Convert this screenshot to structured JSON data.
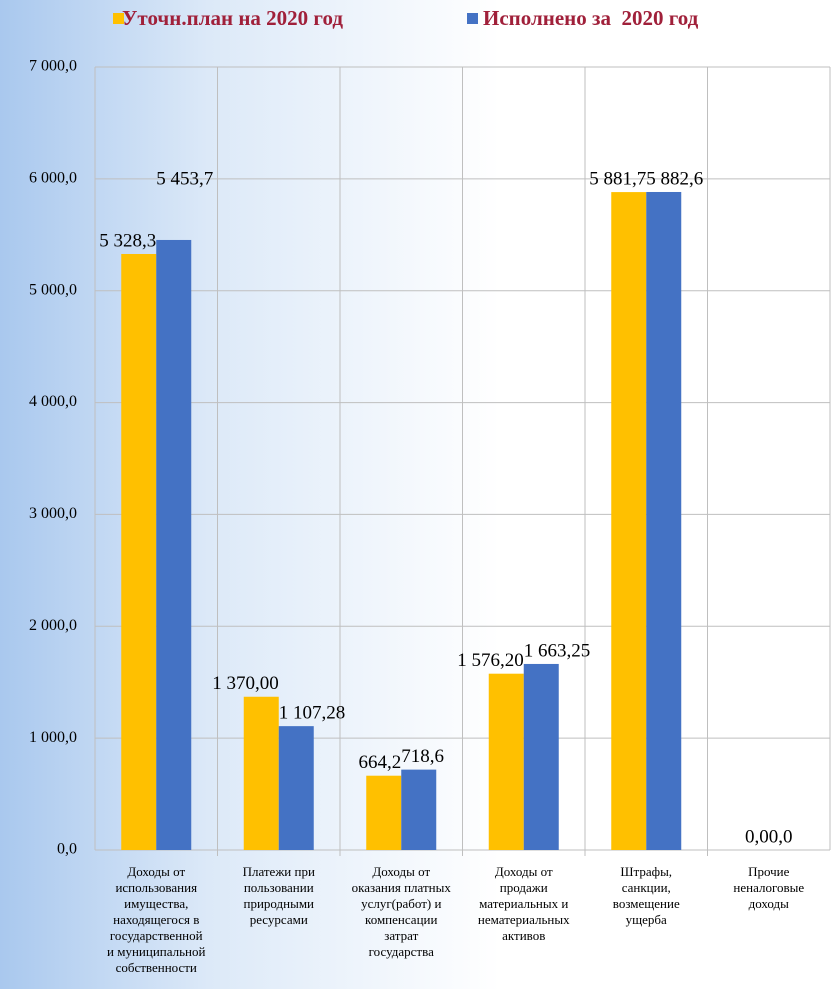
{
  "chart_data": {
    "type": "bar",
    "categories": [
      "Доходы от\nиспользования\nимущества,\nнаходящегося в\nгосударственной\nи муниципальной\nсобственности",
      "Платежи при\nпользовании\nприродными\nресурсами",
      "Доходы от\nоказания платных\nуслуг(работ) и\nкомпенсации\nзатрат\nгосударства",
      "Доходы от\nпродажи\nматериальных и\nнематериальных\nактивов",
      "Штрафы,\nсанкции,\nвозмещение\nущерба",
      "Прочие\nненалоговые\nдоходы"
    ],
    "series": [
      {
        "name": "Уточн.план на 2020 год",
        "color": "#ffc000",
        "values": [
          5328.3,
          1370.0,
          664.2,
          1576.2,
          5881.7,
          0.0
        ],
        "value_labels": [
          "5 328,3",
          "1 370,00",
          "664,2",
          "1 576,20",
          "5 881,7",
          "0,0"
        ]
      },
      {
        "name": "Исполнено за  2020 год",
        "color": "#4472c4",
        "values": [
          5453.7,
          1107.28,
          718.6,
          1663.25,
          5882.6,
          0.0
        ],
        "value_labels": [
          "5 453,7",
          "1 107,28",
          "718,6",
          "1 663,25",
          "5 882,6",
          "0,0"
        ]
      }
    ],
    "ylim": [
      0,
      7000
    ],
    "yticks": [
      {
        "value": 0,
        "label": "0,0"
      },
      {
        "value": 1000,
        "label": "1 000,0"
      },
      {
        "value": 2000,
        "label": "2 000,0"
      },
      {
        "value": 3000,
        "label": "3 000,0"
      },
      {
        "value": 4000,
        "label": "4 000,0"
      },
      {
        "value": 5000,
        "label": "5 000,0"
      },
      {
        "value": 6000,
        "label": "6 000,0"
      },
      {
        "value": 7000,
        "label": "7 000,0"
      }
    ],
    "grid": true,
    "legend": "top"
  }
}
